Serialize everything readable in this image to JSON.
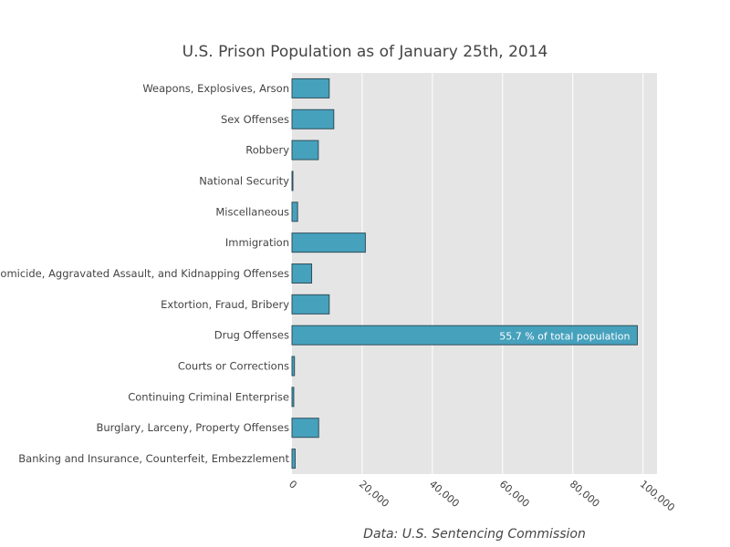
{
  "chart_data": {
    "type": "bar",
    "orientation": "horizontal",
    "title": "U.S. Prison Population as of January 25th, 2014",
    "source": "Data: U.S. Sentencing Commission",
    "categories": [
      "Weapons, Explosives, Arson",
      "Sex Offenses",
      "Robbery",
      "National Security",
      "Miscellaneous",
      "Immigration",
      "Homicide, Aggravated Assault, and Kidnapping Offenses",
      "Extortion, Fraud, Bribery",
      "Drug Offenses",
      "Courts or Corrections",
      "Continuing Criminal Enterprise",
      "Burglary, Larceny, Property Offenses",
      "Banking and Insurance, Counterfeit, Embezzlement"
    ],
    "values": [
      10600,
      11900,
      7500,
      80,
      1600,
      20900,
      5600,
      10600,
      98400,
      700,
      500,
      7600,
      900
    ],
    "xlim": [
      0,
      104000
    ],
    "x_ticks": [
      0,
      20000,
      40000,
      60000,
      80000,
      100000
    ],
    "x_tick_labels": [
      "0",
      "20,000",
      "40,000",
      "60,000",
      "80,000",
      "100,000"
    ],
    "grid": true,
    "annotation": {
      "category": "Drug Offenses",
      "text": "55.7 % of total population"
    },
    "colors": {
      "bar_fill": "#46a1bd",
      "bar_stroke": "#2f4f5a",
      "plot_bg": "#e5e5e5",
      "grid": "#ffffff",
      "text": "#444444"
    }
  }
}
